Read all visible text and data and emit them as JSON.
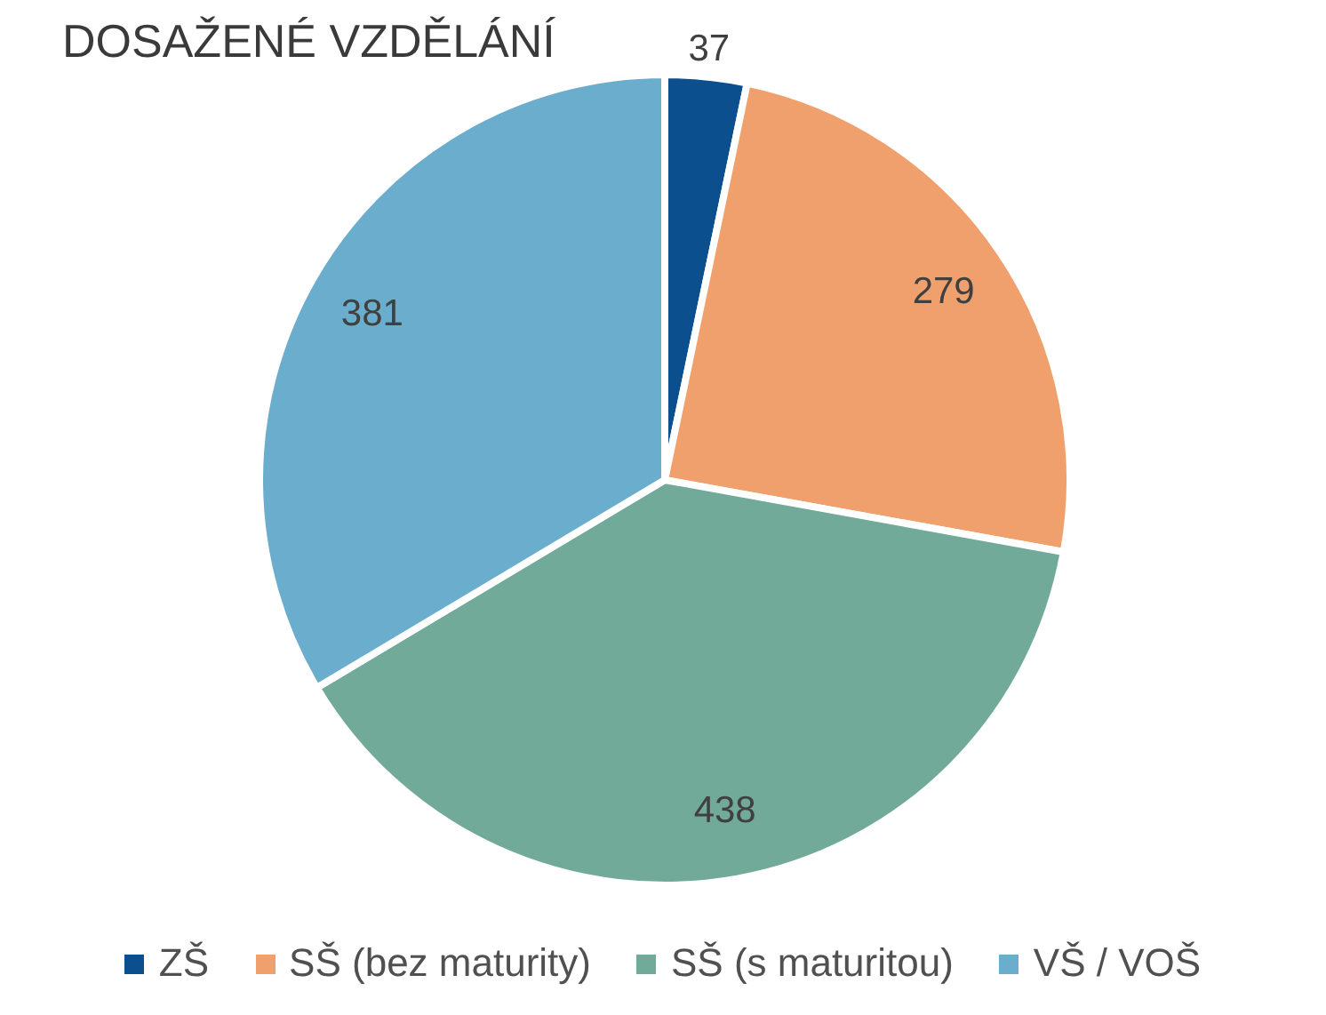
{
  "chart_data": {
    "type": "pie",
    "title": "DOSAŽENÉ VZDĚLÁNÍ",
    "categories": [
      "ZŠ",
      "SŠ (bez maturity)",
      "SŠ (s maturitou)",
      "VŠ / VOŠ"
    ],
    "values": [
      37,
      279,
      438,
      381
    ],
    "colors": [
      "#0b4f8e",
      "#f0a06c",
      "#72aa9a",
      "#6badcc"
    ],
    "data_labels": true,
    "legend": "bottom"
  }
}
